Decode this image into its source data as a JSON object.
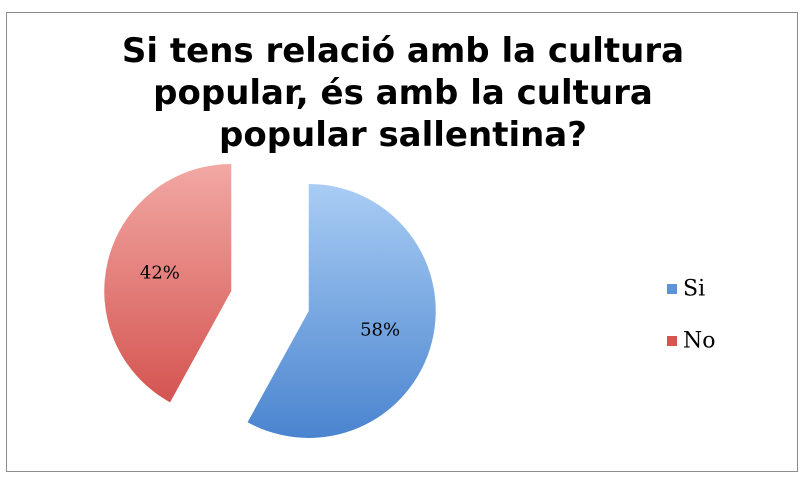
{
  "chart_data": {
    "type": "pie",
    "title_lines": [
      "Si tens relació amb la cultura",
      "popular, és amb la cultura",
      "popular sallentina?"
    ],
    "categories": [
      "Si",
      "No"
    ],
    "values": [
      58,
      42
    ],
    "labels": [
      "58%",
      "42%"
    ],
    "colors": [
      "#5b93d6",
      "#d9534f"
    ],
    "legend_position": "right"
  }
}
